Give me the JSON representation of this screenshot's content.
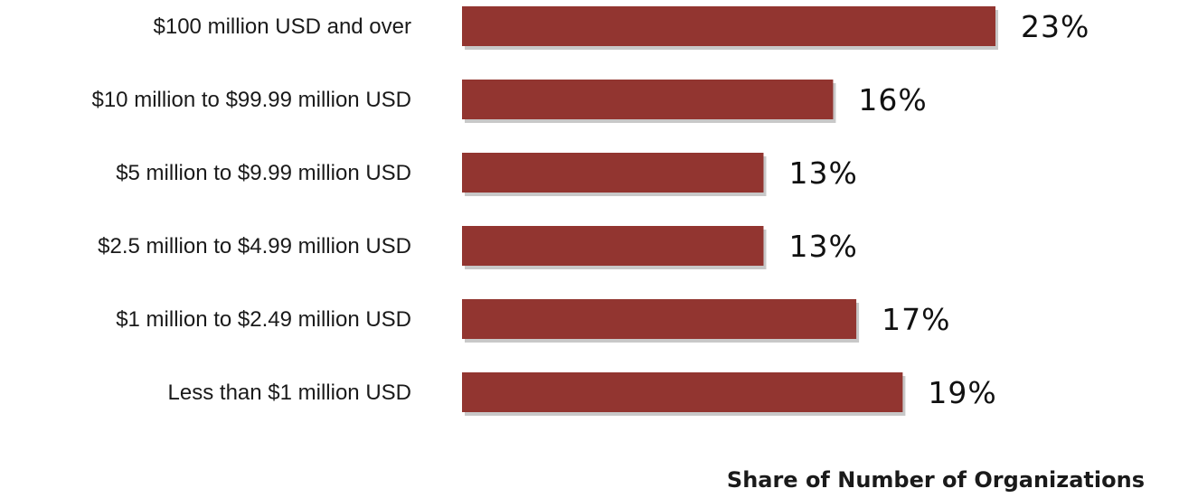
{
  "chart_data": {
    "type": "bar",
    "orientation": "horizontal",
    "categories": [
      "$100 million USD and over",
      "$10 million to $99.99 million USD",
      "$5 million to $9.99 million USD",
      "$2.5 million to $4.99 million USD",
      "$1 million to $2.49 million USD",
      "Less than $1 million USD"
    ],
    "values": [
      23,
      16,
      13,
      13,
      17,
      19
    ],
    "value_labels": [
      "23%",
      "16%",
      "13%",
      "13%",
      "17%",
      "19%"
    ],
    "xlabel": "Share of Number of Organizations",
    "title": "",
    "ylabel": "",
    "xlim": [
      0,
      23
    ],
    "grid": false,
    "legend": "none",
    "colors": {
      "bar": "#923530",
      "bar_shadow": "#c8c8c8"
    }
  }
}
